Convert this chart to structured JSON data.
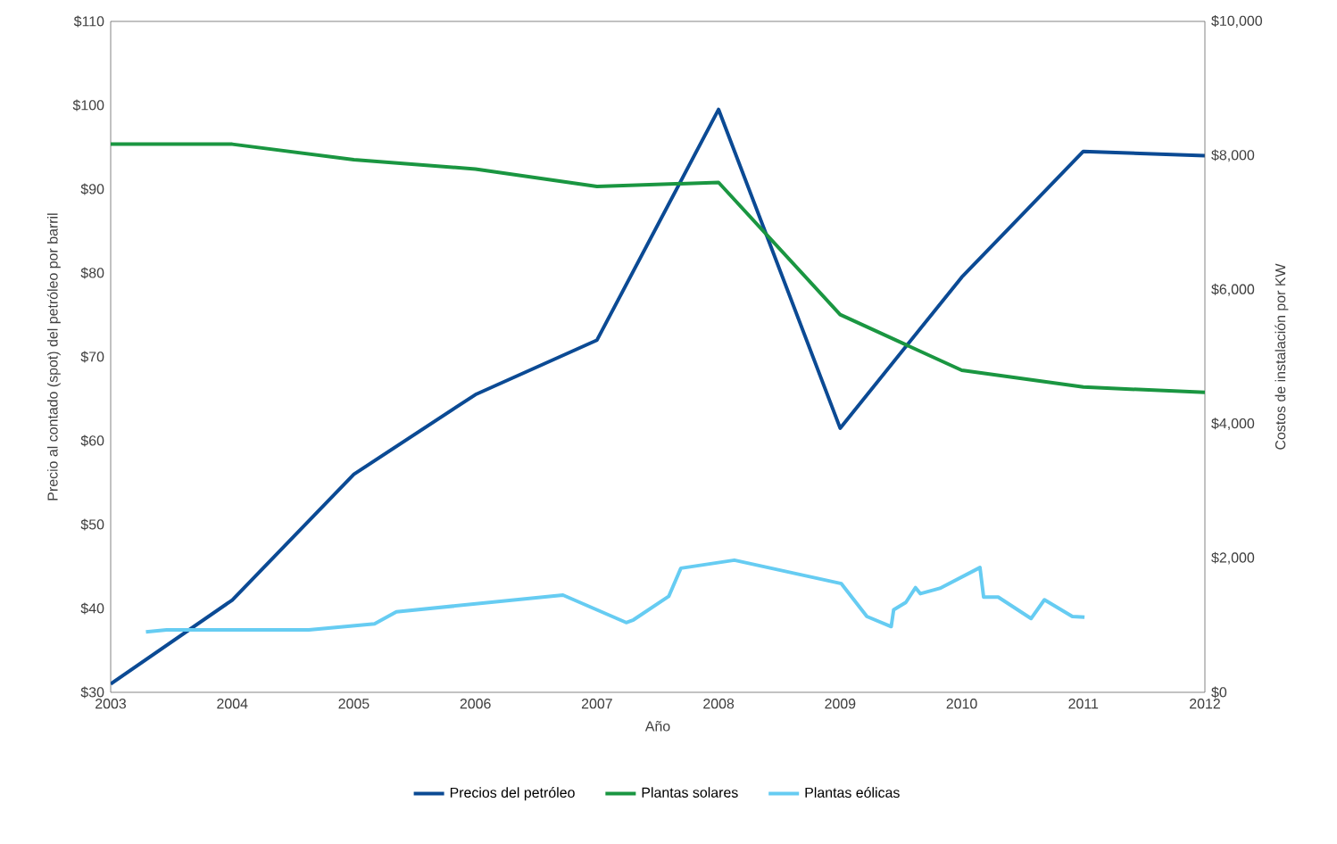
{
  "chart_data": {
    "type": "line",
    "xlabel": "Año",
    "ylabel": "Precio al contado (spot) del petróleo por barril",
    "y2label": "Costos de instalación por KW",
    "xlim": [
      2003,
      2012
    ],
    "xticks": [
      2003,
      2004,
      2005,
      2006,
      2007,
      2008,
      2009,
      2010,
      2011,
      2012
    ],
    "ylim": [
      30,
      110
    ],
    "yticks": [
      {
        "value": 30,
        "label": "$30"
      },
      {
        "value": 40,
        "label": "$40"
      },
      {
        "value": 50,
        "label": "$50"
      },
      {
        "value": 60,
        "label": "$60"
      },
      {
        "value": 70,
        "label": "$70"
      },
      {
        "value": 80,
        "label": "$80"
      },
      {
        "value": 90,
        "label": "$90"
      },
      {
        "value": 100,
        "label": "$100"
      },
      {
        "value": 110,
        "label": "$110"
      }
    ],
    "y2lim": [
      0,
      10000
    ],
    "y2ticks": [
      {
        "value": 0,
        "label": "$0"
      },
      {
        "value": 2000,
        "label": "$2,000"
      },
      {
        "value": 4000,
        "label": "$4,000"
      },
      {
        "value": 6000,
        "label": "$6,000"
      },
      {
        "value": 8000,
        "label": "$8,000"
      },
      {
        "value": 10000,
        "label": "$10,000"
      }
    ],
    "grid": false,
    "legend": "bottom",
    "marker": "none",
    "line_style": "solid",
    "series": [
      {
        "name": "Precios del petróleo",
        "color": "#0b4a94",
        "x": [
          2003,
          2004,
          2005,
          2006,
          2007,
          2008,
          2009,
          2010,
          2011,
          2012
        ],
        "values": [
          31,
          41,
          56,
          65.5,
          72,
          99.5,
          61.5,
          79.5,
          94.5,
          94
        ]
      },
      {
        "name": "Plantas solares",
        "color": "#1a9641",
        "axis": "y2",
        "x": [
          2003,
          2004,
          2005,
          2006,
          2007,
          2008,
          2009,
          2010,
          2011,
          2012
        ],
        "values": [
          8170,
          8170,
          7940,
          7800,
          7540,
          7600,
          5630,
          4800,
          4550,
          4470
        ]
      },
      {
        "name": "Plantas eólicas",
        "color": "#66ccf2",
        "axis": "y2",
        "x": [
          2003.29,
          2003.46,
          2004.63,
          2005.17,
          2005.35,
          2006.72,
          2007.24,
          2007.3,
          2007.59,
          2007.69,
          2008.13,
          2009.01,
          2009.22,
          2009.42,
          2009.44,
          2009.54,
          2009.62,
          2009.66,
          2009.82,
          2010.15,
          2010.18,
          2010.3,
          2010.57,
          2010.68,
          2010.91,
          2011.01
        ],
        "values": [
          900,
          930,
          930,
          1020,
          1200,
          1450,
          1040,
          1080,
          1430,
          1850,
          1970,
          1620,
          1130,
          980,
          1230,
          1340,
          1560,
          1470,
          1550,
          1860,
          1420,
          1420,
          1100,
          1380,
          1130,
          1120
        ]
      }
    ]
  }
}
